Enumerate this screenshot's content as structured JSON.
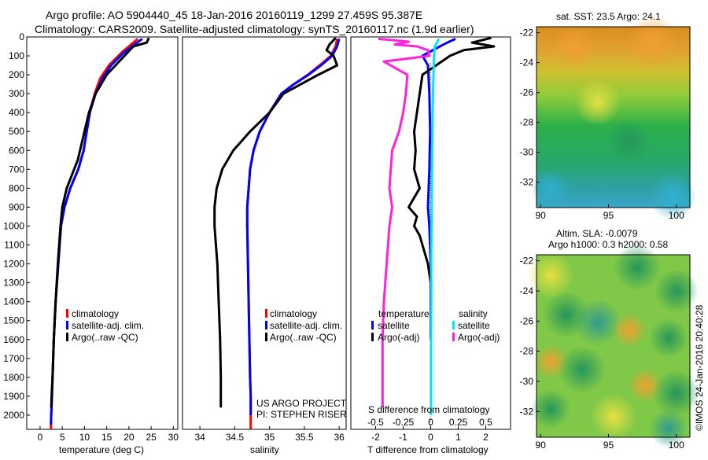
{
  "header": {
    "line1": "Argo profile: AO 5904440_45 18-Jan-2016 20160119_1299 27.459S 95.387E",
    "line2": "Climatology: CARS2009. Satellite-adjusted climatology: synTS_20160117.nc (1.9d earlier)"
  },
  "colors": {
    "climatology": "#ff0000",
    "satellite": "#0000ff",
    "argo": "#000000",
    "sat_diff": "#00e5ff",
    "argo_diff": "#ff22dd"
  },
  "chart_data": [
    {
      "type": "line",
      "id": "temperature",
      "xlabel": "temperature (deg C)",
      "xlim": [
        -3,
        31
      ],
      "xticks": [
        "0",
        "5",
        "10",
        "15",
        "20",
        "25",
        "30"
      ],
      "ylim": [
        0,
        2075
      ],
      "yticks": [
        "0",
        "100",
        "200",
        "300",
        "400",
        "500",
        "600",
        "700",
        "800",
        "900",
        "1000",
        "1100",
        "1200",
        "1300",
        "1400",
        "1500",
        "1600",
        "1700",
        "1800",
        "1900",
        "2000"
      ],
      "legend": [
        "climatology",
        "satellite-adj. clim.",
        "Argo(..raw -QC)"
      ],
      "series": [
        {
          "name": "climatology",
          "color": "#ff0000",
          "x": [
            22,
            18.5,
            15.5,
            13.5,
            12.3,
            11.2,
            10.5,
            9.8,
            8.6,
            6.8,
            5.5,
            4.7,
            4.1,
            3.5,
            3.1,
            2.8,
            2.6,
            2.5,
            2.45,
            2.45
          ],
          "y": [
            10,
            80,
            150,
            220,
            300,
            400,
            500,
            600,
            700,
            800,
            900,
            1000,
            1200,
            1400,
            1600,
            1800,
            1950,
            2000,
            2050,
            2075
          ]
        },
        {
          "name": "satellite-adj. clim.",
          "color": "#0000ff",
          "x": [
            23,
            19,
            16,
            14,
            12.5,
            11.2,
            10.5,
            9.8,
            8.6,
            6.8,
            5.5,
            4.7,
            4.1,
            3.5,
            3.1,
            2.8,
            2.6,
            2.5,
            2.45
          ],
          "y": [
            10,
            80,
            150,
            220,
            300,
            400,
            500,
            600,
            700,
            800,
            900,
            1000,
            1200,
            1400,
            1600,
            1800,
            1950,
            2000,
            2050
          ]
        },
        {
          "name": "Argo(..raw -QC)",
          "color": "#000000",
          "x": [
            24.5,
            24,
            21,
            19,
            15,
            12.5,
            11,
            10,
            8.5,
            6,
            5,
            4.6,
            4,
            3.5,
            3.1,
            2.8,
            2.6,
            2.5
          ],
          "y": [
            5,
            30,
            50,
            100,
            200,
            300,
            400,
            500,
            650,
            800,
            900,
            1000,
            1200,
            1400,
            1600,
            1800,
            1900,
            1960
          ]
        }
      ]
    },
    {
      "type": "line",
      "id": "salinity",
      "xlabel": "salinity",
      "xlim": [
        33.75,
        36.1
      ],
      "xticks": [
        "34",
        "34.5",
        "35",
        "35.5",
        "36"
      ],
      "legend": [
        "climatology",
        "satellite-adj. clim.",
        "Argo(..raw -QC)"
      ],
      "annotations": [
        "US ARGO PROJECT",
        "PI: STEPHEN RISER"
      ],
      "series": [
        {
          "name": "climatology",
          "color": "#ff0000",
          "x": [
            35.97,
            35.95,
            35.88,
            35.72,
            35.55,
            35.35,
            35.17,
            35,
            34.86,
            34.77,
            34.72,
            34.7,
            34.68,
            34.68,
            34.69,
            34.7,
            34.71,
            34.72,
            34.73,
            34.73,
            34.73
          ],
          "y": [
            10,
            50,
            100,
            150,
            200,
            250,
            300,
            400,
            500,
            600,
            700,
            800,
            900,
            1000,
            1200,
            1400,
            1600,
            1800,
            1900,
            2000,
            2075
          ]
        },
        {
          "name": "satellite-adj. clim.",
          "color": "#0000ff",
          "x": [
            36,
            35.97,
            35.9,
            35.74,
            35.56,
            35.35,
            35.17,
            35,
            34.86,
            34.77,
            34.72,
            34.7,
            34.68,
            34.68,
            34.69,
            34.7,
            34.71,
            34.72,
            34.73,
            34.73
          ],
          "y": [
            10,
            50,
            100,
            150,
            200,
            250,
            300,
            400,
            500,
            600,
            700,
            800,
            900,
            1000,
            1200,
            1400,
            1600,
            1800,
            1900,
            2000
          ]
        },
        {
          "name": "Argo(..raw -QC)",
          "color": "#000000",
          "x": [
            35.95,
            35.86,
            35.82,
            35.92,
            35.97,
            35.7,
            35.45,
            35.2,
            35,
            34.72,
            34.48,
            34.32,
            34.24,
            34.21,
            34.21,
            34.25,
            34.27,
            34.29,
            34.3,
            34.3
          ],
          "y": [
            5,
            40,
            70,
            100,
            150,
            200,
            250,
            300,
            400,
            500,
            600,
            700,
            800,
            900,
            1000,
            1200,
            1400,
            1600,
            1800,
            1960
          ]
        }
      ]
    },
    {
      "type": "line",
      "id": "difference",
      "xlabel": "T difference from climatology",
      "xlabel_top": "S difference from climatology",
      "xlim": [
        -2.9,
        2.9
      ],
      "xticks": [
        "-2",
        "-1",
        "0",
        "1",
        "2"
      ],
      "xticks_top": [
        "-0.5",
        "-0.25",
        "0",
        "0.25",
        "0.5"
      ],
      "legend_titles": [
        "temperature",
        "salinity"
      ],
      "legend": [
        "satellite",
        "Argo(-adj)",
        "satellite",
        "Argo(-adj)"
      ],
      "series": [
        {
          "name": "temperature satellite",
          "color": "#0000ff",
          "x": [
            0.9,
            0.6,
            0.2,
            -0.3,
            -0.1,
            -0.05,
            -0.02,
            -0.05,
            -0.1,
            -0.05,
            0,
            0,
            0
          ],
          "y": [
            10,
            30,
            60,
            100,
            150,
            300,
            500,
            700,
            900,
            1000,
            1200,
            1400,
            1600
          ]
        },
        {
          "name": "temperature Argo(-adj)",
          "color": "#000000",
          "x": [
            2.2,
            1.5,
            2.3,
            1.2,
            0.7,
            -0.3,
            -0.4,
            -0.5,
            -0.6,
            -0.55,
            -0.6,
            -0.5,
            -0.4,
            -0.8,
            -0.5,
            -0.6,
            -0.4,
            -0.3,
            -0.1,
            0
          ],
          "y": [
            5,
            30,
            50,
            70,
            100,
            200,
            300,
            400,
            500,
            600,
            700,
            750,
            800,
            900,
            950,
            1000,
            1050,
            1100,
            1200,
            1300
          ]
        },
        {
          "name": "salinity satellite",
          "color": "#00e5ff",
          "x": [
            0.3,
            0.15,
            0.12,
            0.1,
            0.07,
            0.05,
            0.04,
            0.03,
            0.02,
            0.02,
            0.01,
            0.01,
            0.01
          ],
          "y": [
            10,
            50,
            100,
            200,
            400,
            600,
            800,
            1000,
            1200,
            1400,
            1600,
            1800,
            2000
          ]
        },
        {
          "name": "salinity Argo(-adj)",
          "color": "#ff22dd",
          "x": [
            -1.9,
            -0.8,
            -1.3,
            -0.5,
            -0.1,
            -0.05,
            -1.7,
            -0.85,
            -0.9,
            -1.0,
            -1.15,
            -1.4,
            -1.5,
            -1.4,
            -1.5,
            -1.6,
            -1.7,
            -1.75,
            -1.75,
            -1.75
          ],
          "y": [
            10,
            25,
            40,
            50,
            70,
            100,
            130,
            200,
            300,
            400,
            500,
            600,
            800,
            900,
            1000,
            1200,
            1400,
            1600,
            1800,
            1960
          ]
        }
      ]
    },
    {
      "type": "heatmap",
      "id": "sst-map",
      "title": "sat. SST: 23.5 Argo: 24.1",
      "xlim": [
        89.7,
        101
      ],
      "ylim": [
        -33.7,
        -21.6
      ],
      "xticks": [
        "90",
        "95",
        "100"
      ],
      "yticks": [
        "-22",
        "-24",
        "-26",
        "-28",
        "-30",
        "-32"
      ]
    },
    {
      "type": "heatmap",
      "id": "sla-map",
      "title": "Altim. SLA: -0.0079",
      "subtitle": "Argo h1000: 0.3 h2000: 0.58",
      "xlim": [
        89.7,
        101
      ],
      "ylim": [
        -33.7,
        -21.6
      ],
      "xticks": [
        "90",
        "95",
        "100"
      ],
      "yticks": [
        "-22",
        "-24",
        "-26",
        "-28",
        "-30",
        "-32"
      ]
    }
  ],
  "footer": {
    "credit": "©IMOS 24-Jan-2016 20:40:28"
  }
}
